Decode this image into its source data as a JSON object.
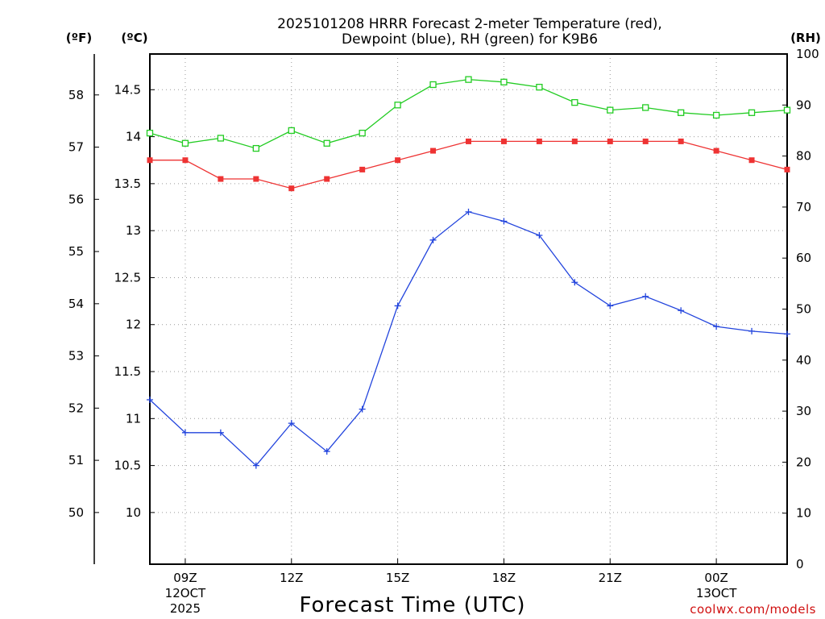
{
  "chart_data": {
    "type": "line",
    "title_line1": "2025101208 HRRR Forecast 2-meter Temperature (red),",
    "title_line2": "Dewpoint (blue), RH (green) for K9B6",
    "xlabel": "Forecast Time (UTC)",
    "credit": "coolwx.com/models",
    "left_outer_unit": "(ºF)",
    "left_inner_unit": "(ºC)",
    "right_unit": "(RH)",
    "hours": [
      8,
      9,
      10,
      11,
      12,
      13,
      14,
      15,
      16,
      17,
      18,
      19,
      20,
      21,
      22,
      23,
      24,
      25,
      26
    ],
    "x_ticks": [
      {
        "hour": 9,
        "label": "09Z",
        "date": "12OCT",
        "year": "2025"
      },
      {
        "hour": 12,
        "label": "12Z"
      },
      {
        "hour": 15,
        "label": "15Z"
      },
      {
        "hour": 18,
        "label": "18Z"
      },
      {
        "hour": 21,
        "label": "21Z"
      },
      {
        "hour": 24,
        "label": "00Z",
        "date": "13OCT"
      }
    ],
    "celsius_ticks": [
      "10",
      "10.5",
      "11",
      "11.5",
      "12",
      "12.5",
      "13",
      "13.5",
      "14",
      "14.5"
    ],
    "fahrenheit_ticks": [
      "50",
      "51",
      "52",
      "53",
      "54",
      "55",
      "56",
      "57",
      "58"
    ],
    "rh_ticks": [
      "0",
      "10",
      "20",
      "30",
      "40",
      "50",
      "60",
      "70",
      "80",
      "90",
      "100"
    ],
    "celsius_range": [
      9.45,
      14.88
    ],
    "rh_range": [
      0,
      100
    ],
    "series": [
      {
        "name": "Temperature",
        "color": "#ee3333",
        "marker": "filled-square",
        "unit": "C",
        "values": [
          13.75,
          13.75,
          13.55,
          13.55,
          13.45,
          13.55,
          13.65,
          13.75,
          13.85,
          13.95,
          13.95,
          13.95,
          13.95,
          13.95,
          13.95,
          13.95,
          13.85,
          13.75,
          13.65
        ]
      },
      {
        "name": "Dewpoint",
        "color": "#2244dd",
        "marker": "plus",
        "unit": "C",
        "values": [
          11.2,
          10.85,
          10.85,
          10.5,
          10.95,
          10.65,
          11.1,
          12.2,
          12.9,
          13.2,
          13.1,
          12.95,
          12.45,
          12.2,
          12.3,
          12.15,
          11.98,
          11.93,
          11.9
        ]
      },
      {
        "name": "RH",
        "color": "#22cc22",
        "marker": "open-square",
        "unit": "%",
        "values": [
          84.5,
          82.5,
          83.5,
          81.5,
          85,
          82.5,
          84.5,
          90,
          94,
          95,
          94.5,
          93.5,
          90.5,
          89,
          89.5,
          88.5,
          88,
          88.5,
          89
        ]
      }
    ]
  }
}
